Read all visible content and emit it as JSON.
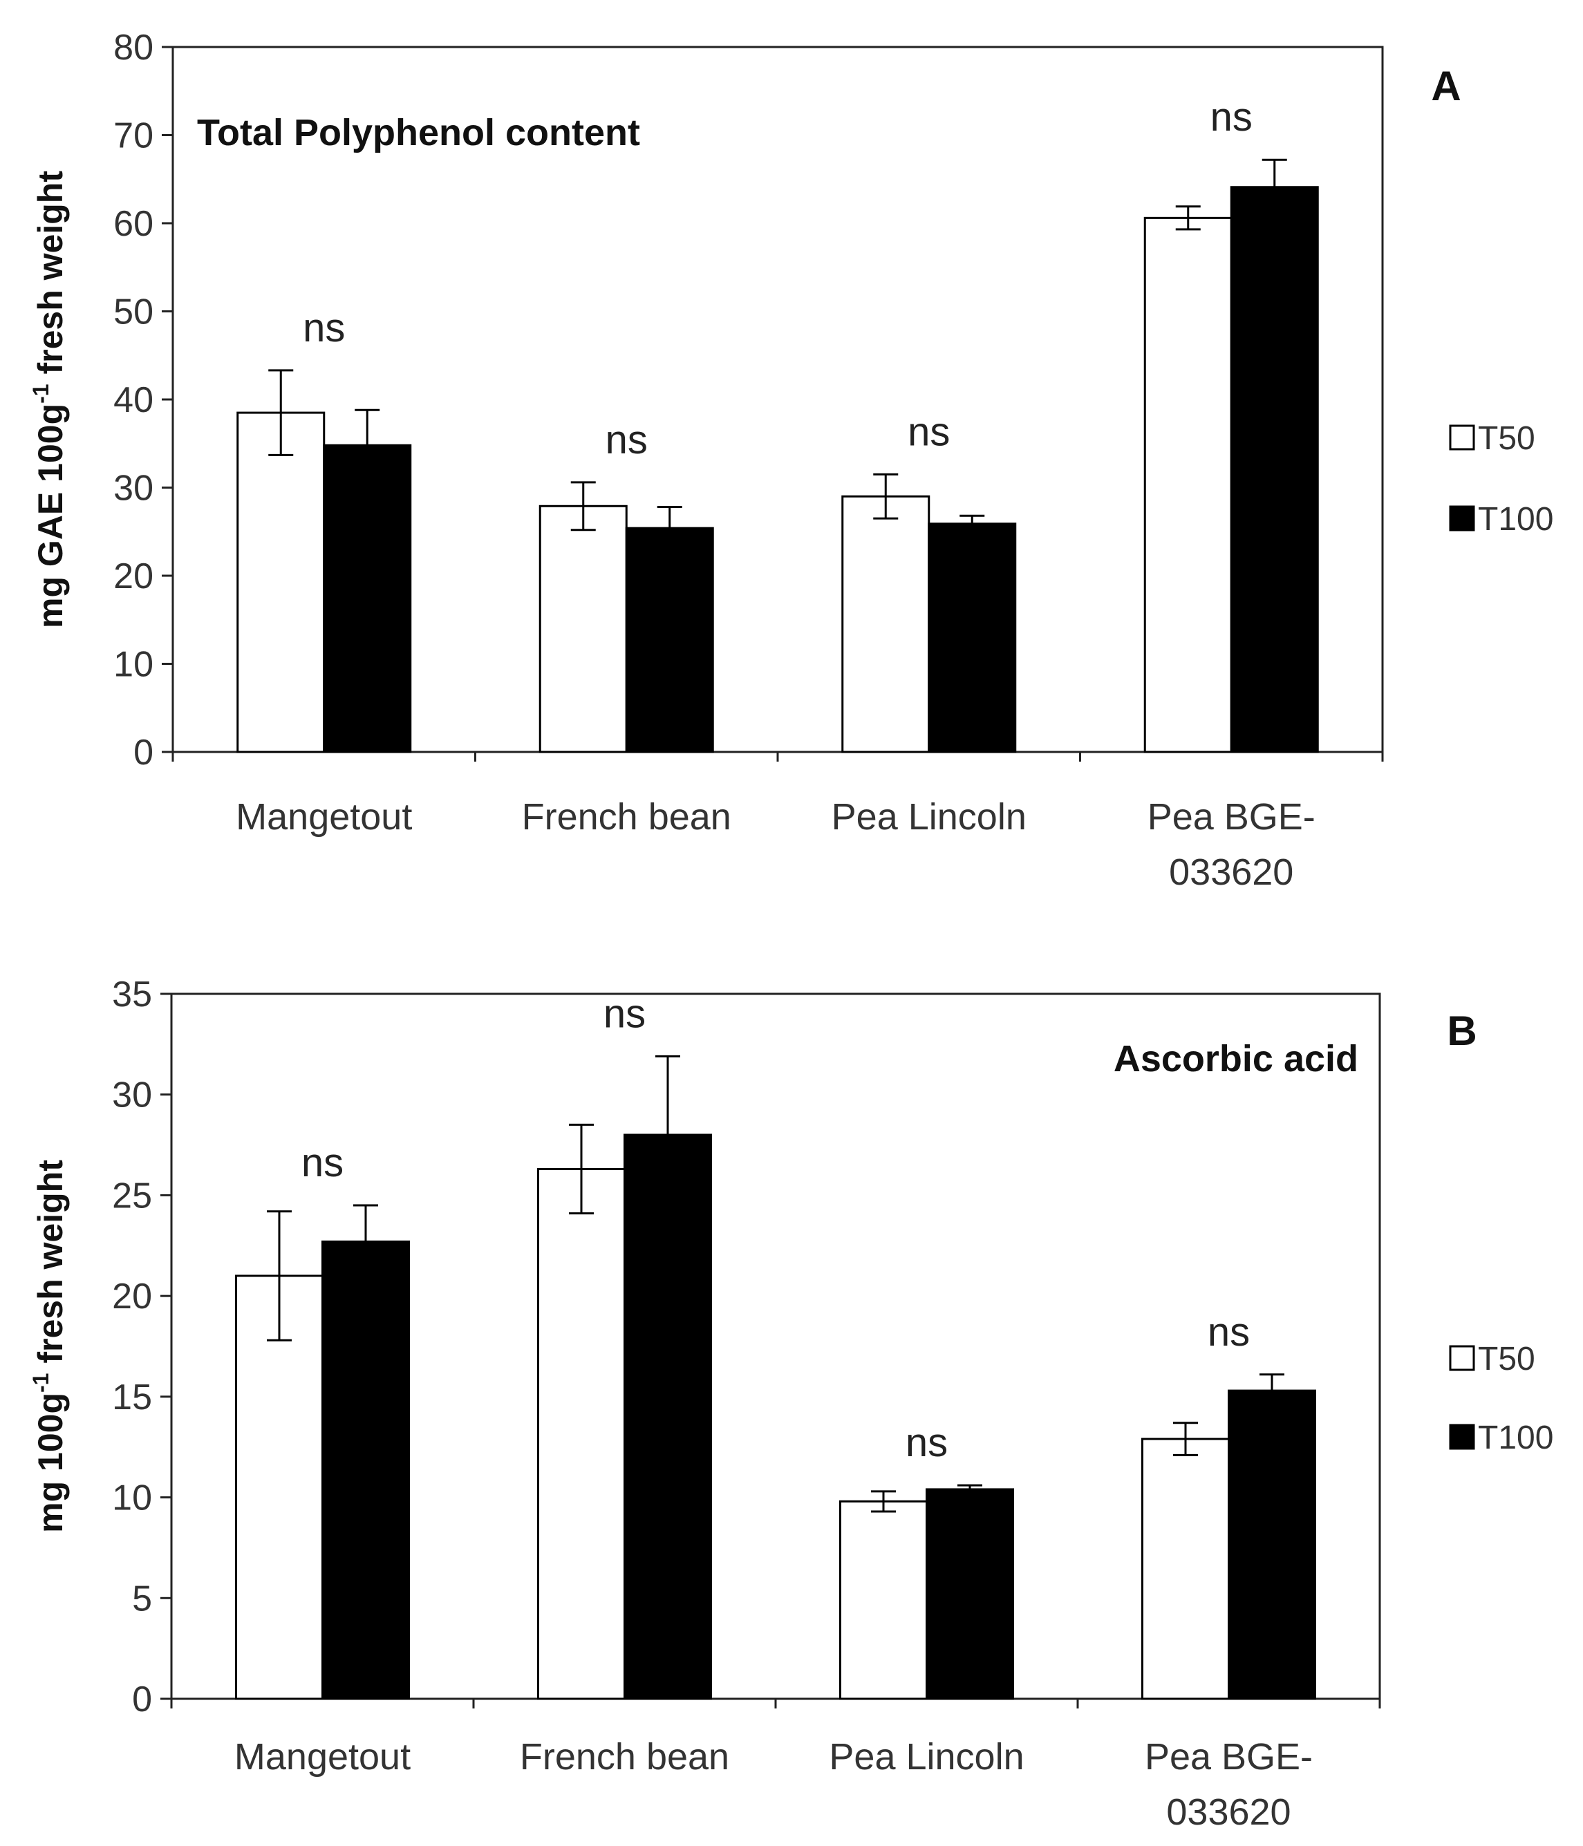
{
  "chart_data": [
    {
      "type": "bar",
      "panel_label": "A",
      "title": "Total Polyphenol content",
      "ylabel": "mg GAE 100g",
      "ylabel_sup": "-1",
      "ylabel_rest": " fresh weight",
      "xlabel": "",
      "ylim": [
        0,
        80
      ],
      "yticks": [
        "0",
        "10",
        "20",
        "30",
        "40",
        "50",
        "60",
        "70",
        "80"
      ],
      "categories": [
        {
          "line1": "Mangetout",
          "line2": ""
        },
        {
          "line1": "French bean",
          "line2": ""
        },
        {
          "line1": "Pea Lincoln",
          "line2": ""
        },
        {
          "line1": "Pea  BGE-",
          "line2": "033620"
        }
      ],
      "series": [
        {
          "name": "T50",
          "color": "#ffffff",
          "values": [
            38.5,
            27.9,
            29.0,
            60.6
          ],
          "errors": [
            4.8,
            2.7,
            2.5,
            1.3
          ]
        },
        {
          "name": "T100",
          "color": "#000000",
          "values": [
            34.8,
            25.4,
            25.9,
            64.1
          ],
          "errors": [
            4.0,
            2.4,
            0.9,
            3.1
          ]
        }
      ],
      "annotations": [
        "ns",
        "ns",
        "ns",
        "ns"
      ],
      "legend": [
        "T50",
        "T100"
      ],
      "legend_position": "right",
      "grid": false
    },
    {
      "type": "bar",
      "panel_label": "B",
      "title": "Ascorbic acid",
      "ylabel": "mg 100g",
      "ylabel_sup": "-1",
      "ylabel_rest": " fresh weight",
      "xlabel": "",
      "ylim": [
        0,
        35
      ],
      "yticks": [
        "0",
        "5",
        "10",
        "15",
        "20",
        "25",
        "30",
        "35"
      ],
      "categories": [
        {
          "line1": "Mangetout",
          "line2": ""
        },
        {
          "line1": "French bean",
          "line2": ""
        },
        {
          "line1": "Pea Lincoln",
          "line2": ""
        },
        {
          "line1": "Pea  BGE-",
          "line2": "033620"
        }
      ],
      "series": [
        {
          "name": "T50",
          "color": "#ffffff",
          "values": [
            21.0,
            26.3,
            9.8,
            12.9
          ],
          "errors": [
            3.2,
            2.2,
            0.5,
            0.8
          ]
        },
        {
          "name": "T100",
          "color": "#000000",
          "values": [
            22.7,
            28.0,
            10.4,
            15.3
          ],
          "errors": [
            1.8,
            3.9,
            0.2,
            0.8
          ]
        }
      ],
      "annotations": [
        "ns",
        "ns",
        "ns",
        "ns"
      ],
      "legend": [
        "T50",
        "T100"
      ],
      "legend_position": "right",
      "grid": false
    }
  ]
}
